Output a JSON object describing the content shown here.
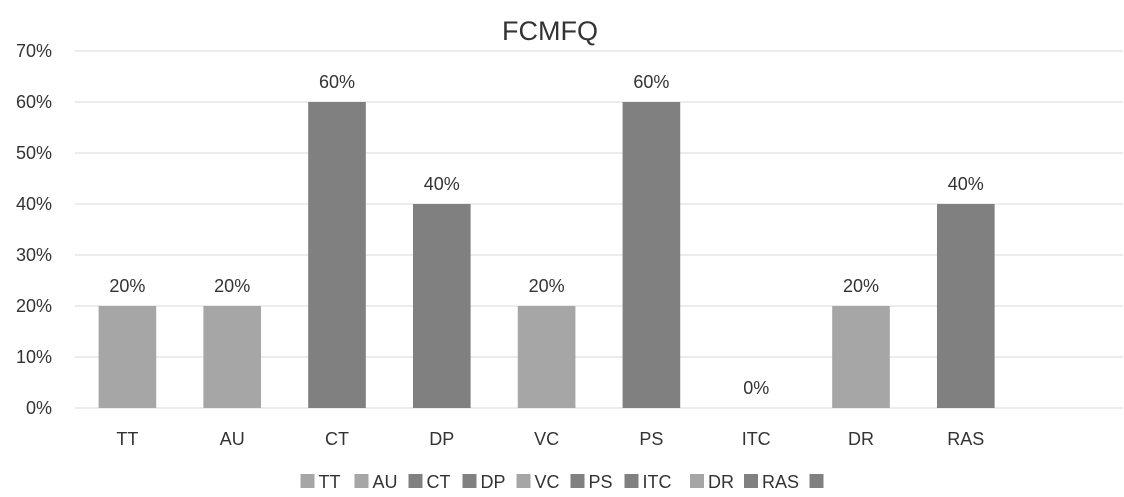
{
  "chart_data": {
    "type": "bar",
    "title": "FCMFQ",
    "xlabel": "",
    "ylabel": "",
    "categories": [
      "TT",
      "AU",
      "CT",
      "DP",
      "VC",
      "PS",
      "ITC",
      "DR",
      "RAS",
      ""
    ],
    "values": [
      0.2,
      0.2,
      0.6,
      0.4,
      0.2,
      0.6,
      0.0,
      0.2,
      0.4,
      null
    ],
    "data_labels": [
      "20%",
      "20%",
      "60%",
      "40%",
      "20%",
      "60%",
      "0%",
      "20%",
      "40%",
      ""
    ],
    "colors": [
      "#a6a6a6",
      "#a6a6a6",
      "#808080",
      "#808080",
      "#a6a6a6",
      "#808080",
      "#808080",
      "#a6a6a6",
      "#808080",
      "#808080"
    ],
    "ylim": [
      0,
      0.7
    ],
    "yticks": [
      0,
      0.1,
      0.2,
      0.3,
      0.4,
      0.5,
      0.6,
      0.7
    ],
    "ytick_labels": [
      "0%",
      "10%",
      "20%",
      "30%",
      "40%",
      "50%",
      "60%",
      "70%"
    ],
    "grid": true,
    "legend": {
      "position": "bottom",
      "entries": [
        "TT",
        "AU",
        "CT",
        "DP",
        "VC",
        "PS",
        "ITC",
        "DR",
        "RAS",
        ""
      ]
    }
  }
}
